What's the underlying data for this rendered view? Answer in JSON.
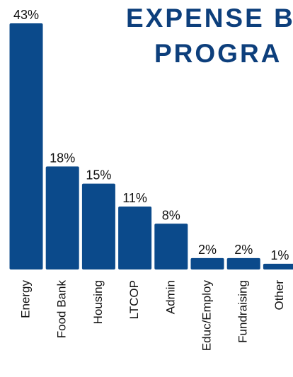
{
  "chart_data": {
    "type": "bar",
    "title": [
      "EXPENSE B",
      "PROGRA"
    ],
    "categories": [
      "Energy",
      "Food Bank",
      "Housing",
      "LTCOP",
      "Admin",
      "Educ/Employ",
      "Fundraising",
      "Other"
    ],
    "values": [
      43,
      18,
      15,
      11,
      8,
      2,
      2,
      1
    ],
    "value_labels": [
      "43%",
      "18%",
      "15%",
      "11%",
      "8%",
      "2%",
      "2%",
      "1%"
    ],
    "color": "#0b4a8b",
    "title_color": "#0d3f7c"
  }
}
